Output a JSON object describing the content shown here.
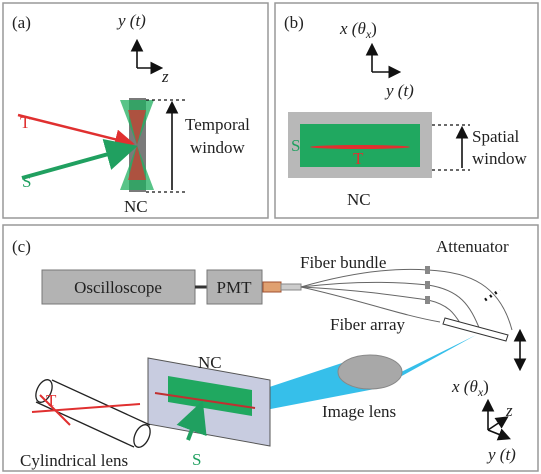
{
  "panel_a": {
    "label": "(a)",
    "axis_vertical": "y (t)",
    "axis_horizontal": "z",
    "beam_t": "T",
    "beam_s": "S",
    "window_label": [
      "Temporal",
      "window"
    ],
    "crystal": "NC"
  },
  "panel_b": {
    "label": "(b)",
    "axis_vertical": [
      "x (θ",
      "x",
      ")"
    ],
    "axis_horizontal": "y (t)",
    "signal": "S",
    "beam_t": "T",
    "window_label": [
      "Spatial",
      "window"
    ],
    "crystal": "NC"
  },
  "panel_c": {
    "label": "(c)",
    "oscilloscope": "Oscilloscope",
    "pmt": "PMT",
    "fiber_bundle": "Fiber bundle",
    "attenuator": "Attenuator",
    "fiber_array": "Fiber array",
    "crystal": "NC",
    "image_lens": "Image lens",
    "beam_t": "T",
    "beam_s": "S",
    "cylindrical_lens": "Cylindrical lens",
    "axis_x": [
      "x (θ",
      "x",
      ")"
    ],
    "axis_z": "z",
    "axis_y": "y (t)"
  }
}
